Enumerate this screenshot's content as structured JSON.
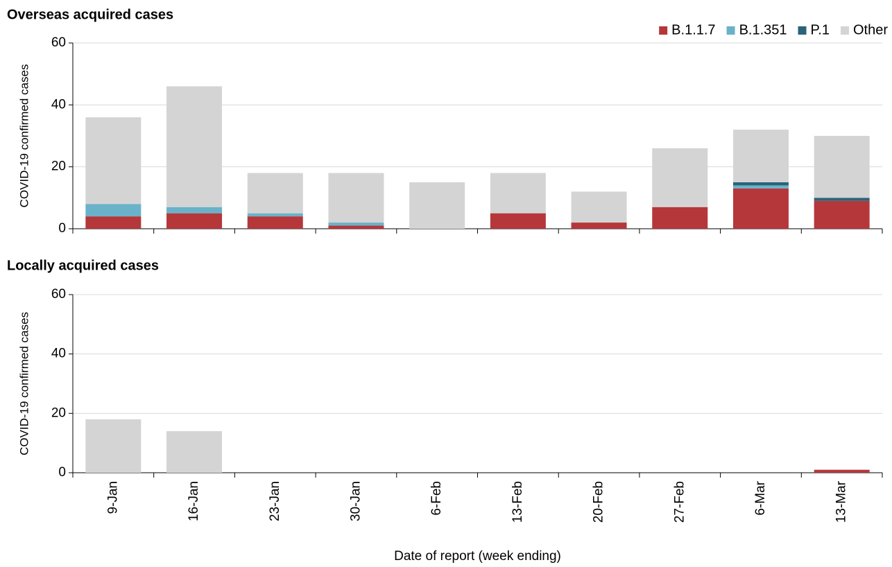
{
  "chart_data": [
    {
      "type": "bar",
      "stacked": true,
      "title": "Overseas acquired cases",
      "ylabel": "COVID-19 confirmed cases",
      "ylim": [
        0,
        60
      ],
      "yticks": [
        0,
        20,
        40,
        60
      ],
      "grid": true,
      "legend": "top-right",
      "series": [
        {
          "name": "B.1.1.7",
          "color": "#b5373a",
          "values": [
            4,
            5,
            4,
            1,
            0,
            5,
            2,
            7,
            13,
            9
          ]
        },
        {
          "name": "B.1.351",
          "color": "#6ab2c9",
          "values": [
            4,
            2,
            1,
            1,
            0,
            0,
            0,
            0,
            1,
            0
          ]
        },
        {
          "name": "P.1",
          "color": "#2a6478",
          "values": [
            0,
            0,
            0,
            0,
            0,
            0,
            0,
            0,
            1,
            1
          ]
        },
        {
          "name": "Other",
          "color": "#d4d4d4",
          "values": [
            28,
            39,
            13,
            16,
            15,
            13,
            10,
            19,
            17,
            20
          ]
        }
      ]
    },
    {
      "type": "bar",
      "stacked": true,
      "title": "Locally acquired cases",
      "ylabel": "COVID-19 confirmed cases",
      "xlabel": "Date of report (week ending)",
      "categories": [
        "9-Jan",
        "16-Jan",
        "23-Jan",
        "30-Jan",
        "6-Feb",
        "13-Feb",
        "20-Feb",
        "27-Feb",
        "6-Mar",
        "13-Mar"
      ],
      "ylim": [
        0,
        60
      ],
      "yticks": [
        0,
        20,
        40,
        60
      ],
      "grid": true,
      "series": [
        {
          "color": "#b5373a",
          "values": [
            0,
            0,
            0,
            0,
            0,
            0,
            0,
            0,
            0,
            1
          ]
        },
        {
          "color": "#d4d4d4",
          "values": [
            18,
            14,
            0,
            0,
            0,
            0,
            0,
            0,
            0,
            0
          ]
        }
      ]
    }
  ]
}
